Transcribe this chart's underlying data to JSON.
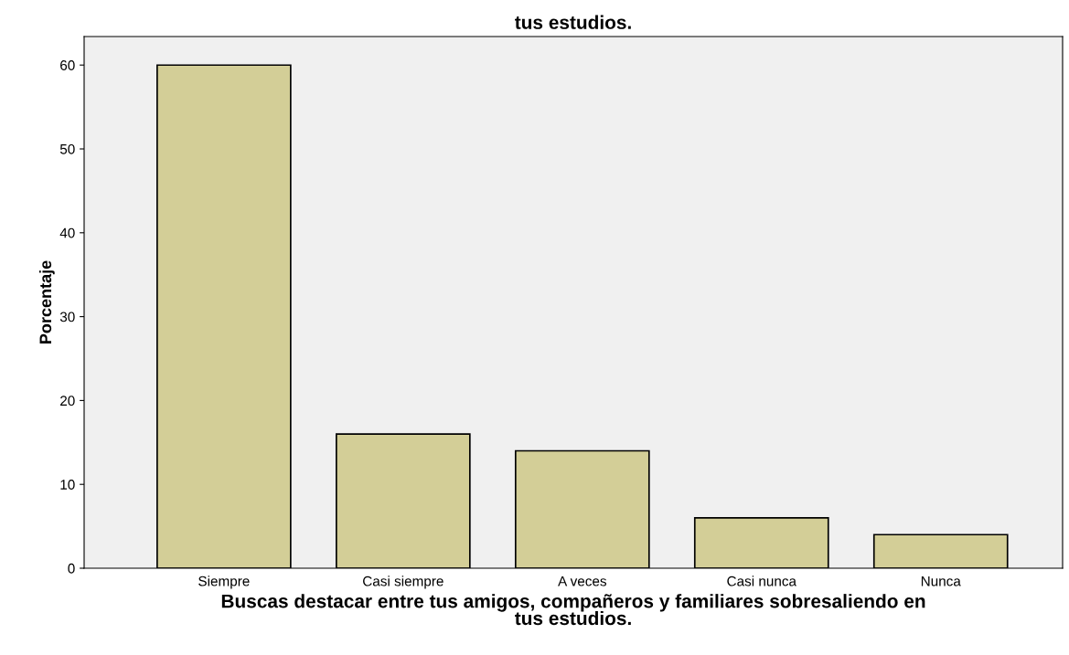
{
  "chart_data": {
    "type": "bar",
    "title": "tus estudios.",
    "xlabel": "Buscas destacar entre tus amigos, compañeros y familiares sobresaliendo en\ntus estudios.",
    "ylabel": "Porcentaje",
    "categories": [
      "Siempre",
      "Casi siempre",
      "A veces",
      "Casi nunca",
      "Nunca"
    ],
    "values": [
      60,
      16,
      14,
      6,
      4
    ],
    "color": "#d3ce97",
    "ylim": [
      0,
      63.4
    ],
    "yticks": [
      0,
      10,
      20,
      30,
      40,
      50,
      60
    ],
    "grid": false,
    "legend": false
  }
}
